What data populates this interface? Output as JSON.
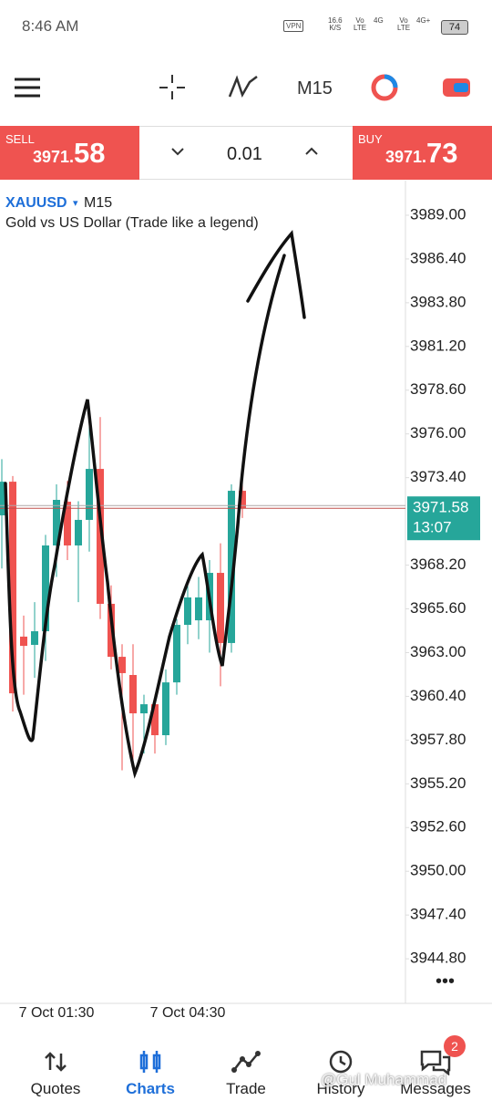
{
  "status_bar": {
    "time": "8:46 AM",
    "vpn": "VPN",
    "net_speed": "16.6",
    "net_unit": "K/S",
    "signal_labels": [
      "Vo",
      "LTE",
      "4G",
      "Vo",
      "LTE",
      "4G+"
    ],
    "battery": "74"
  },
  "toolbar": {
    "timeframe": "M15"
  },
  "trade_panel": {
    "sell_label": "SELL",
    "sell_price_main": "3971.",
    "sell_price_big": "58",
    "volume": "0.01",
    "buy_label": "BUY",
    "buy_price_main": "3971.",
    "buy_price_big": "73"
  },
  "chart_data": {
    "type": "candlestick",
    "symbol": "XAUUSD",
    "timeframe": "M15",
    "subtitle": "Gold vs US Dollar (Trade like a legend)",
    "categories": [
      null,
      null,
      null,
      null,
      null,
      "7 Oct 01:30",
      null,
      null,
      null,
      null,
      null,
      null,
      null,
      null,
      null,
      null,
      null,
      "7 Oct 04:30",
      null,
      null,
      null,
      null,
      null
    ],
    "open": [
      3971.16,
      3973.16,
      3963.95,
      3963.46,
      3964.27,
      3969.37,
      3971.97,
      3969.37,
      3970.89,
      3973.92,
      3965.9,
      3962.75,
      3961.67,
      3959.39,
      3959.93,
      3958.09,
      3961.23,
      3964.65,
      3964.92,
      3964.92,
      3967.74,
      3963.57,
      3972.62
    ],
    "high": [
      3974.5,
      3973.5,
      3965.2,
      3966.0,
      3970.0,
      3973.0,
      3973.2,
      3972.0,
      3976.5,
      3977.0,
      3967.0,
      3963.5,
      3963.5,
      3960.5,
      3960.5,
      3962.0,
      3965.0,
      3967.0,
      3967.5,
      3968.5,
      3969.5,
      3973.0,
      3973.0
    ],
    "low": [
      3968.0,
      3959.5,
      3960.5,
      3961.5,
      3962.5,
      3967.5,
      3968.5,
      3966.0,
      3969.0,
      3965.0,
      3962.0,
      3956.0,
      3956.5,
      3957.0,
      3957.0,
      3957.5,
      3960.5,
      3963.5,
      3963.8,
      3963.0,
      3961.0,
      3963.0,
      3971.0
    ],
    "close": [
      3973.16,
      3960.58,
      3963.4,
      3964.27,
      3969.37,
      3972.08,
      3969.37,
      3970.89,
      3973.92,
      3965.9,
      3962.75,
      3961.78,
      3959.39,
      3959.93,
      3958.09,
      3961.23,
      3964.65,
      3966.28,
      3966.28,
      3967.74,
      3963.57,
      3972.62,
      3971.58
    ],
    "up_color": "#26a69a",
    "down_color": "#ef5350",
    "ylim": [
      3942.42,
      3990.95
    ],
    "yticks": [
      {
        "value": 3989.0,
        "label": "3989.00"
      },
      {
        "value": 3986.4,
        "label": "3986.40"
      },
      {
        "value": 3983.8,
        "label": "3983.80"
      },
      {
        "value": 3981.2,
        "label": "3981.20"
      },
      {
        "value": 3978.6,
        "label": "3978.60"
      },
      {
        "value": 3976.0,
        "label": "3976.00"
      },
      {
        "value": 3973.4,
        "label": "3973.40"
      },
      {
        "value": 3968.2,
        "label": "3968.20"
      },
      {
        "value": 3965.6,
        "label": "3965.60"
      },
      {
        "value": 3963.0,
        "label": "3963.00"
      },
      {
        "value": 3960.4,
        "label": "3960.40"
      },
      {
        "value": 3957.8,
        "label": "3957.80"
      },
      {
        "value": 3955.2,
        "label": "3955.20"
      },
      {
        "value": 3952.6,
        "label": "3952.60"
      },
      {
        "value": 3950.0,
        "label": "3950.00"
      },
      {
        "value": 3947.4,
        "label": "3947.40"
      },
      {
        "value": 3944.8,
        "label": "3944.80"
      }
    ],
    "current_price": 3971.58,
    "countdown": "13:07"
  },
  "nav": {
    "items": [
      "Quotes",
      "Charts",
      "Trade",
      "History",
      "Messages"
    ],
    "badge": "2"
  },
  "watermark": "@Gul Muhammad"
}
